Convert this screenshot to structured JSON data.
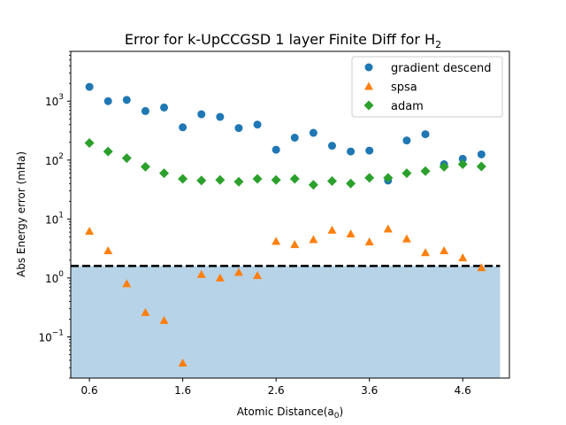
{
  "chart_data": {
    "type": "scatter",
    "title": "Error for k-UpCCGSD 1 layer Finite Diff for H",
    "title_sub": "2",
    "xlabel": "Atomic Distance(a",
    "xlabel_sub": "0",
    "xlabel_close": ")",
    "ylabel": "Abs Energy error (mHa)",
    "y_scale": "log",
    "xlim": [
      0.4,
      5.1
    ],
    "ylim": [
      0.02,
      7000
    ],
    "x_ticks": [
      0.6,
      1.6,
      2.6,
      3.6,
      4.6
    ],
    "x_tick_labels": [
      "0.6",
      "1.6",
      "2.6",
      "3.6",
      "4.6"
    ],
    "y_ticks": [
      0.1,
      1,
      10,
      100,
      1000
    ],
    "y_tick_base": "10",
    "y_tick_exponents": [
      "−1",
      "0",
      "1",
      "2",
      "3"
    ],
    "grid": false,
    "legend_position": "upper-right",
    "chemical_accuracy": {
      "value": 1.6,
      "x_range": [
        0.4,
        5.0
      ],
      "line_style": "dashed",
      "fill_color": "#1f77b4",
      "line_color": "#000000"
    },
    "x": [
      0.6,
      0.8,
      1.0,
      1.2,
      1.4,
      1.6,
      1.8,
      2.0,
      2.2,
      2.4,
      2.6,
      2.8,
      3.0,
      3.2,
      3.4,
      3.6,
      3.8,
      4.0,
      4.2,
      4.4,
      4.6,
      4.8
    ],
    "series": [
      {
        "name": "gradient descend",
        "marker": "circle",
        "color": "#1f77b4",
        "values": [
          1750,
          1000,
          1050,
          680,
          780,
          360,
          600,
          540,
          350,
          400,
          150,
          240,
          290,
          175,
          140,
          145,
          45,
          215,
          275,
          85,
          105,
          125
        ]
      },
      {
        "name": "spsa",
        "marker": "triangle",
        "color": "#ff7f0e",
        "values": [
          6.2,
          2.9,
          0.8,
          0.26,
          0.19,
          0.036,
          1.15,
          1.0,
          1.25,
          1.1,
          4.2,
          3.7,
          4.5,
          6.5,
          5.6,
          4.1,
          6.8,
          4.6,
          2.7,
          2.9,
          2.2,
          1.5
        ]
      },
      {
        "name": "adam",
        "marker": "diamond",
        "color": "#2ca02c",
        "values": [
          195,
          140,
          108,
          77,
          60,
          48,
          45,
          46,
          43,
          48,
          46,
          48,
          38,
          44,
          40,
          50,
          50,
          60,
          65,
          77,
          85,
          78
        ]
      }
    ]
  }
}
